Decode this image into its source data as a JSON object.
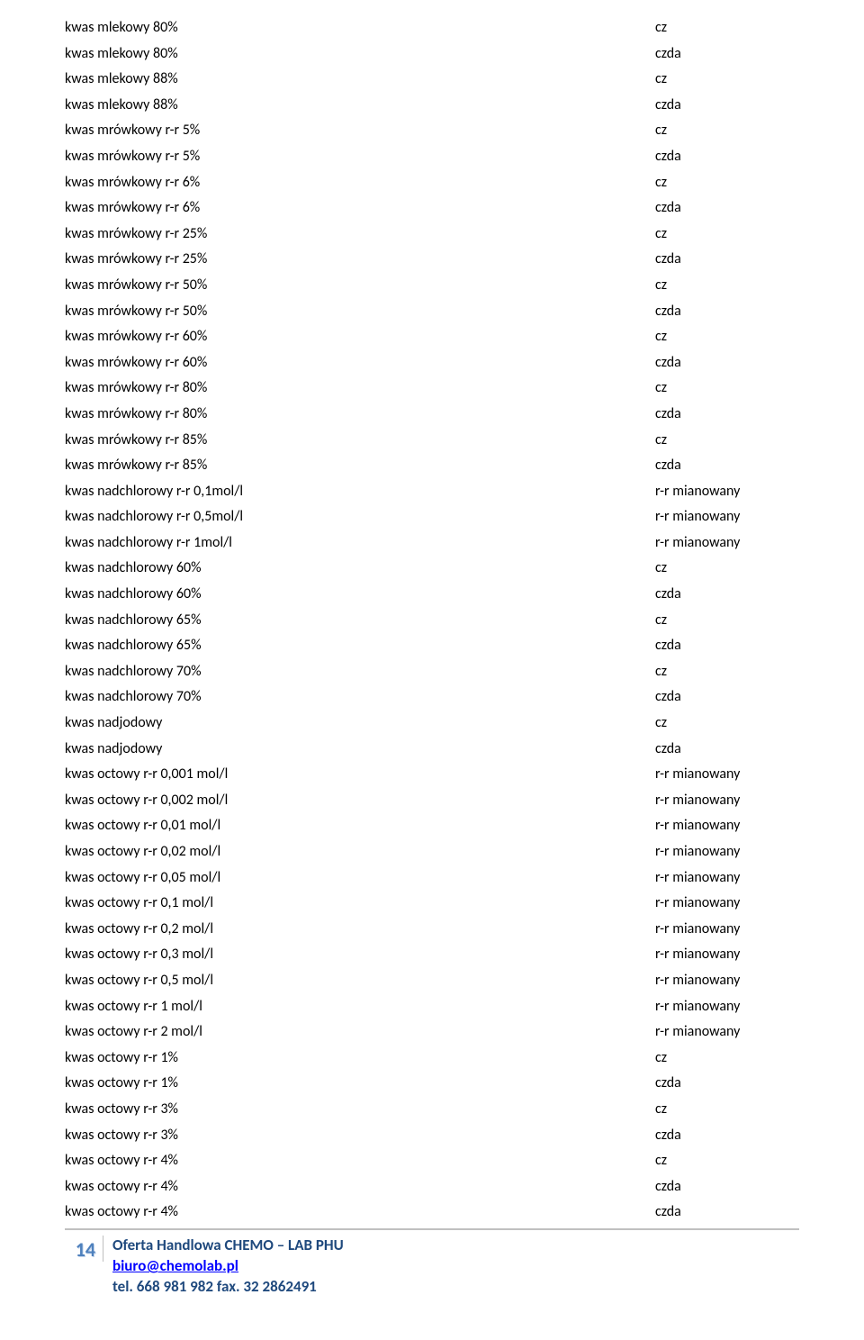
{
  "document": {
    "colors": {
      "text": "#000000",
      "link": "#0000ff",
      "footer_title": "#1f497d",
      "page_num": "#4f81bd",
      "divider": "#c0c0c0",
      "background": "#ffffff"
    },
    "typography": {
      "body_font": "Calibri, Arial, sans-serif",
      "body_size_pt": 12,
      "page_num_size_pt": 16
    },
    "rows": [
      {
        "name": "kwas mlekowy 80%",
        "grade": "cz"
      },
      {
        "name": "kwas mlekowy 80%",
        "grade": "czda"
      },
      {
        "name": "kwas mlekowy 88%",
        "grade": "cz"
      },
      {
        "name": "kwas mlekowy 88%",
        "grade": "czda"
      },
      {
        "name": "kwas mrówkowy r-r 5%",
        "grade": "cz"
      },
      {
        "name": "kwas mrówkowy r-r 5%",
        "grade": "czda"
      },
      {
        "name": "kwas mrówkowy r-r 6%",
        "grade": "cz"
      },
      {
        "name": "kwas mrówkowy r-r 6%",
        "grade": "czda"
      },
      {
        "name": "kwas mrówkowy r-r 25%",
        "grade": "cz"
      },
      {
        "name": "kwas mrówkowy r-r 25%",
        "grade": "czda"
      },
      {
        "name": "kwas mrówkowy r-r 50%",
        "grade": "cz"
      },
      {
        "name": "kwas mrówkowy r-r 50%",
        "grade": "czda"
      },
      {
        "name": "kwas mrówkowy r-r 60%",
        "grade": "cz"
      },
      {
        "name": "kwas mrówkowy r-r 60%",
        "grade": "czda"
      },
      {
        "name": "kwas mrówkowy r-r 80%",
        "grade": "cz"
      },
      {
        "name": "kwas mrówkowy r-r 80%",
        "grade": "czda"
      },
      {
        "name": "kwas mrówkowy r-r 85%",
        "grade": "cz"
      },
      {
        "name": "kwas mrówkowy r-r 85%",
        "grade": "czda"
      },
      {
        "name": "kwas nadchlorowy r-r 0,1mol/l",
        "grade": "r-r mianowany"
      },
      {
        "name": "kwas nadchlorowy r-r 0,5mol/l",
        "grade": "r-r mianowany"
      },
      {
        "name": "kwas nadchlorowy r-r 1mol/l",
        "grade": "r-r mianowany"
      },
      {
        "name": "kwas nadchlorowy 60%",
        "grade": "cz"
      },
      {
        "name": "kwas nadchlorowy 60%",
        "grade": "czda"
      },
      {
        "name": "kwas nadchlorowy 65%",
        "grade": "cz"
      },
      {
        "name": "kwas nadchlorowy 65%",
        "grade": "czda"
      },
      {
        "name": "kwas nadchlorowy 70%",
        "grade": "cz"
      },
      {
        "name": "kwas nadchlorowy 70%",
        "grade": "czda"
      },
      {
        "name": "kwas nadjodowy",
        "grade": "cz"
      },
      {
        "name": "kwas nadjodowy",
        "grade": "czda"
      },
      {
        "name": "kwas octowy r-r 0,001 mol/l",
        "grade": "r-r mianowany"
      },
      {
        "name": "kwas octowy r-r 0,002 mol/l",
        "grade": "r-r mianowany"
      },
      {
        "name": "kwas octowy r-r 0,01 mol/l",
        "grade": "r-r mianowany"
      },
      {
        "name": "kwas octowy r-r 0,02 mol/l",
        "grade": "r-r mianowany"
      },
      {
        "name": "kwas octowy r-r 0,05 mol/l",
        "grade": "r-r mianowany"
      },
      {
        "name": "kwas octowy r-r 0,1 mol/l",
        "grade": "r-r mianowany"
      },
      {
        "name": "kwas octowy r-r 0,2 mol/l",
        "grade": "r-r mianowany"
      },
      {
        "name": "kwas octowy r-r 0,3 mol/l",
        "grade": "r-r mianowany"
      },
      {
        "name": "kwas octowy r-r 0,5 mol/l",
        "grade": "r-r mianowany"
      },
      {
        "name": "kwas octowy r-r 1 mol/l",
        "grade": "r-r mianowany"
      },
      {
        "name": "kwas octowy r-r 2 mol/l",
        "grade": "r-r mianowany"
      },
      {
        "name": "kwas octowy r-r 1%",
        "grade": "cz"
      },
      {
        "name": "kwas octowy r-r 1%",
        "grade": "czda"
      },
      {
        "name": "kwas octowy r-r 3%",
        "grade": "cz"
      },
      {
        "name": "kwas octowy r-r 3%",
        "grade": "czda"
      },
      {
        "name": "kwas octowy r-r 4%",
        "grade": "cz"
      },
      {
        "name": "kwas octowy r-r 4%",
        "grade": "czda"
      },
      {
        "name": "kwas octowy r-r 4%",
        "grade": "czda"
      }
    ],
    "footer": {
      "page_number": "14",
      "title": "Oferta Handlowa CHEMO – LAB PHU",
      "email": "biuro@chemolab.pl",
      "tel": "tel. 668 981 982 fax. 32 2862491"
    }
  }
}
